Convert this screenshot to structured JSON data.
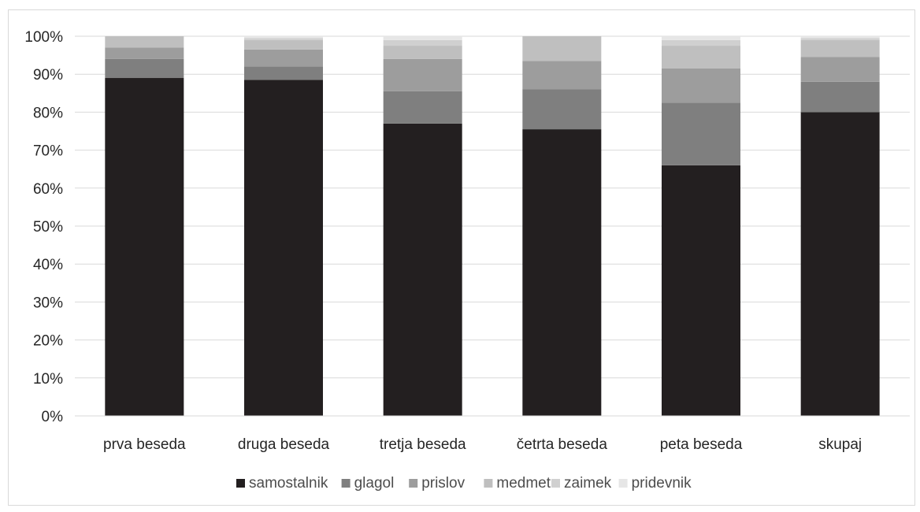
{
  "chart_data": {
    "type": "bar",
    "stacked": true,
    "percent": true,
    "categories": [
      "prva beseda",
      "druga beseda",
      "tretja beseda",
      "četrta beseda",
      "peta beseda",
      "skupaj"
    ],
    "y_ticks": [
      "0%",
      "10%",
      "20%",
      "30%",
      "40%",
      "50%",
      "60%",
      "70%",
      "80%",
      "90%",
      "100%"
    ],
    "ylim": [
      0,
      100
    ],
    "grid": true,
    "legend_position": "bottom",
    "series": [
      {
        "name": "samostalnik",
        "color": "#231f20",
        "values": [
          89,
          88.5,
          77,
          75.5,
          66,
          80
        ]
      },
      {
        "name": "glagol",
        "color": "#7f7f7f",
        "values": [
          5,
          3.5,
          8.5,
          10.5,
          16.5,
          8
        ]
      },
      {
        "name": "prislov",
        "color": "#9d9d9d",
        "values": [
          3,
          4.5,
          8.5,
          7.5,
          9,
          6.5
        ]
      },
      {
        "name": "medmet",
        "color": "#bfbfbf",
        "values": [
          3,
          2.5,
          3.5,
          6.5,
          6,
          4.5
        ]
      },
      {
        "name": "zaimek",
        "color": "#d0d0d0",
        "values": [
          0,
          0.5,
          1.5,
          0,
          1.5,
          0.5
        ]
      },
      {
        "name": "pridevnik",
        "color": "#e6e6e6",
        "values": [
          0,
          0.5,
          1,
          0,
          1,
          0.5
        ]
      }
    ]
  }
}
